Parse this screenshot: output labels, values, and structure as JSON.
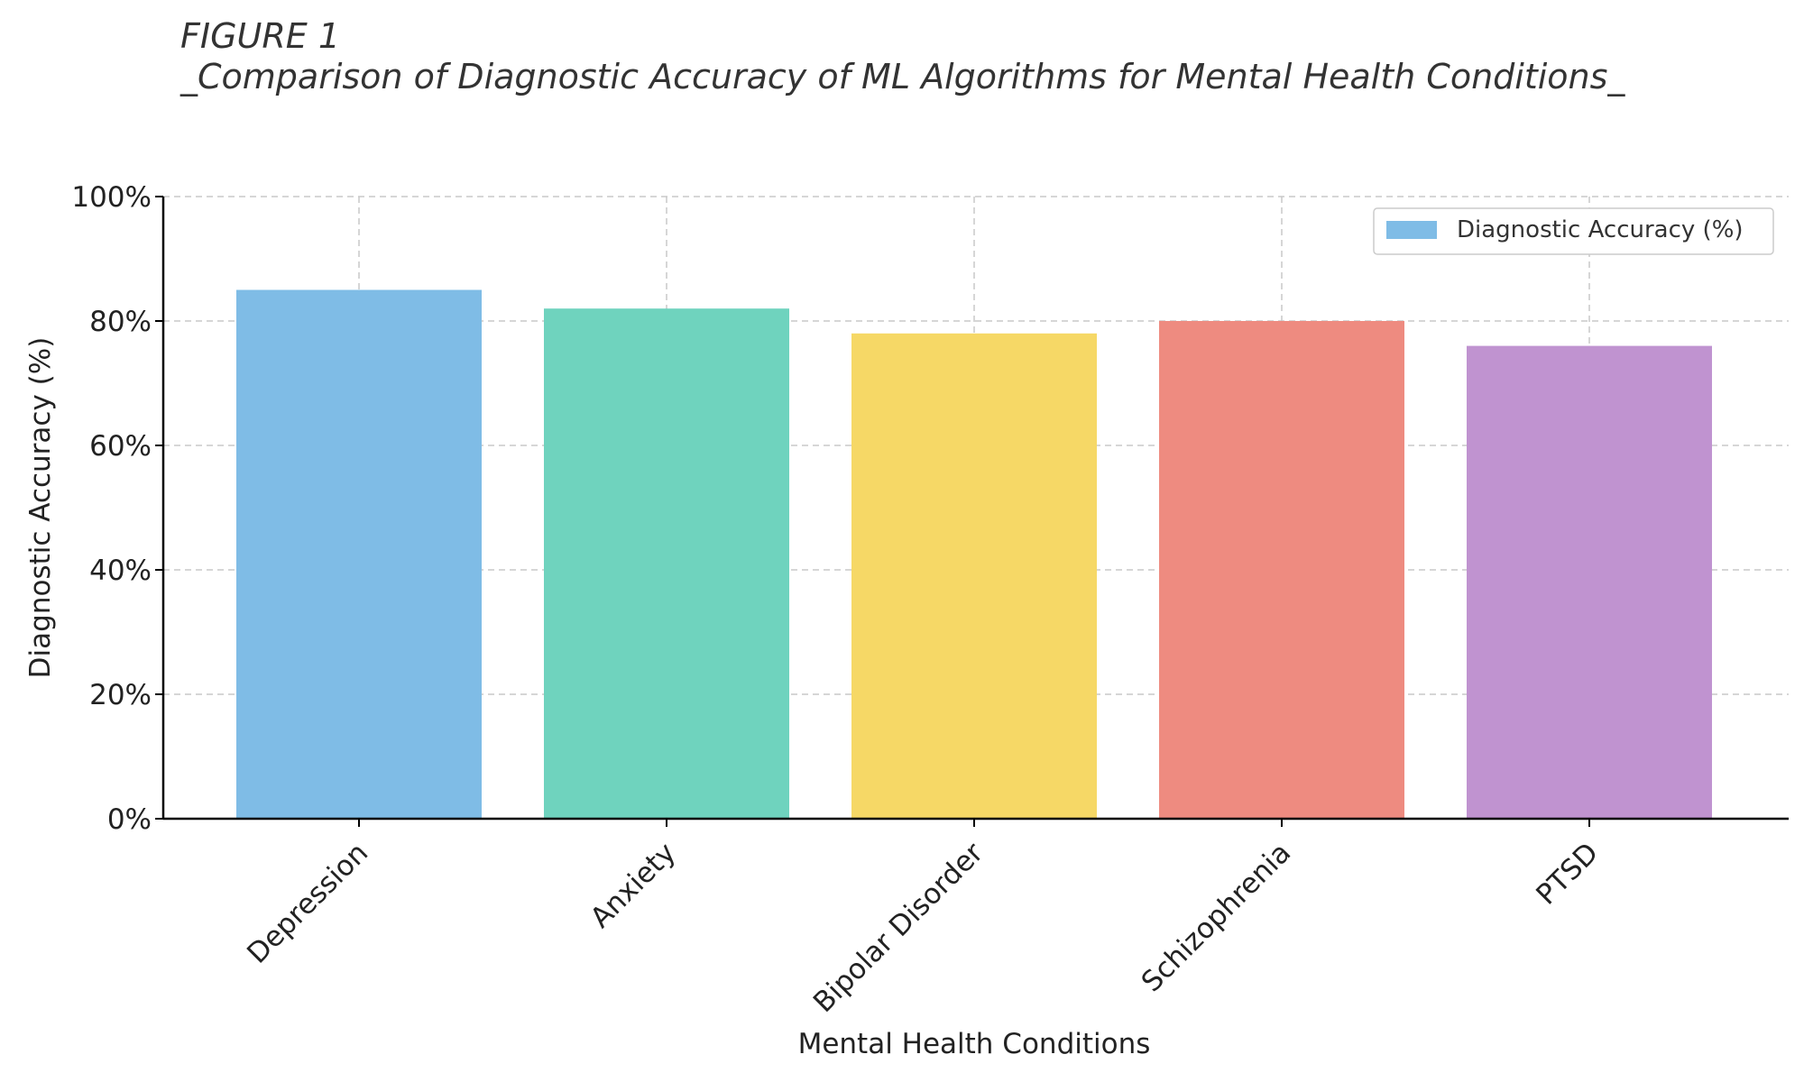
{
  "figure": {
    "label": "FIGURE 1",
    "title": "_Comparison of Diagnostic Accuracy of ML Algorithms for Mental Health Conditions_"
  },
  "chart_data": {
    "type": "bar",
    "categories": [
      "Depression",
      "Anxiety",
      "Bipolar Disorder",
      "Schizophrenia",
      "PTSD"
    ],
    "series": [
      {
        "name": "Diagnostic Accuracy (%)",
        "values": [
          85,
          82,
          78,
          80,
          76
        ]
      }
    ],
    "bar_colors": [
      "#7fbce6",
      "#6fd3be",
      "#f6d866",
      "#ee8b80",
      "#c093d0"
    ],
    "legend_color": "#7fbce6",
    "xlabel": "Mental Health Conditions",
    "ylabel": "Diagnostic Accuracy (%)",
    "ylim": [
      0,
      100
    ],
    "yticks": [
      "0%",
      "20%",
      "40%",
      "60%",
      "80%",
      "100%"
    ],
    "ytick_values": [
      0,
      20,
      40,
      60,
      80,
      100
    ],
    "grid": true,
    "legend": "upper right"
  }
}
